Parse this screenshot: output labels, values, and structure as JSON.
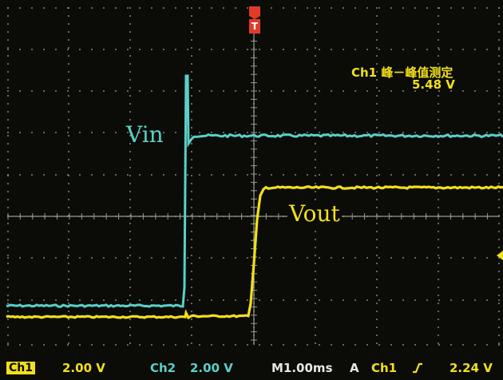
{
  "trigger_marker": {
    "label": "T"
  },
  "measurement": {
    "title": "Ch1 峰－峰值测定",
    "value": "5.48 V"
  },
  "channels": {
    "vin_label": "Vin",
    "vout_label": "Vout"
  },
  "status_bar": {
    "ch1": {
      "label": "Ch1",
      "scale": "2.00 V"
    },
    "ch2": {
      "label": "Ch2",
      "scale": "2.00 V"
    },
    "timebase": "M1.00ms",
    "trigger_mode": "A",
    "trigger_source": "Ch1",
    "trigger_slope_icon": "rising-edge-icon",
    "trigger_level": "2.24 V"
  },
  "colors": {
    "background": "#0b0c08",
    "ch1": "#f2e01a",
    "ch2": "#5ad0c8",
    "grid": "#9a9a90",
    "trigger": "#e23a2a"
  }
}
